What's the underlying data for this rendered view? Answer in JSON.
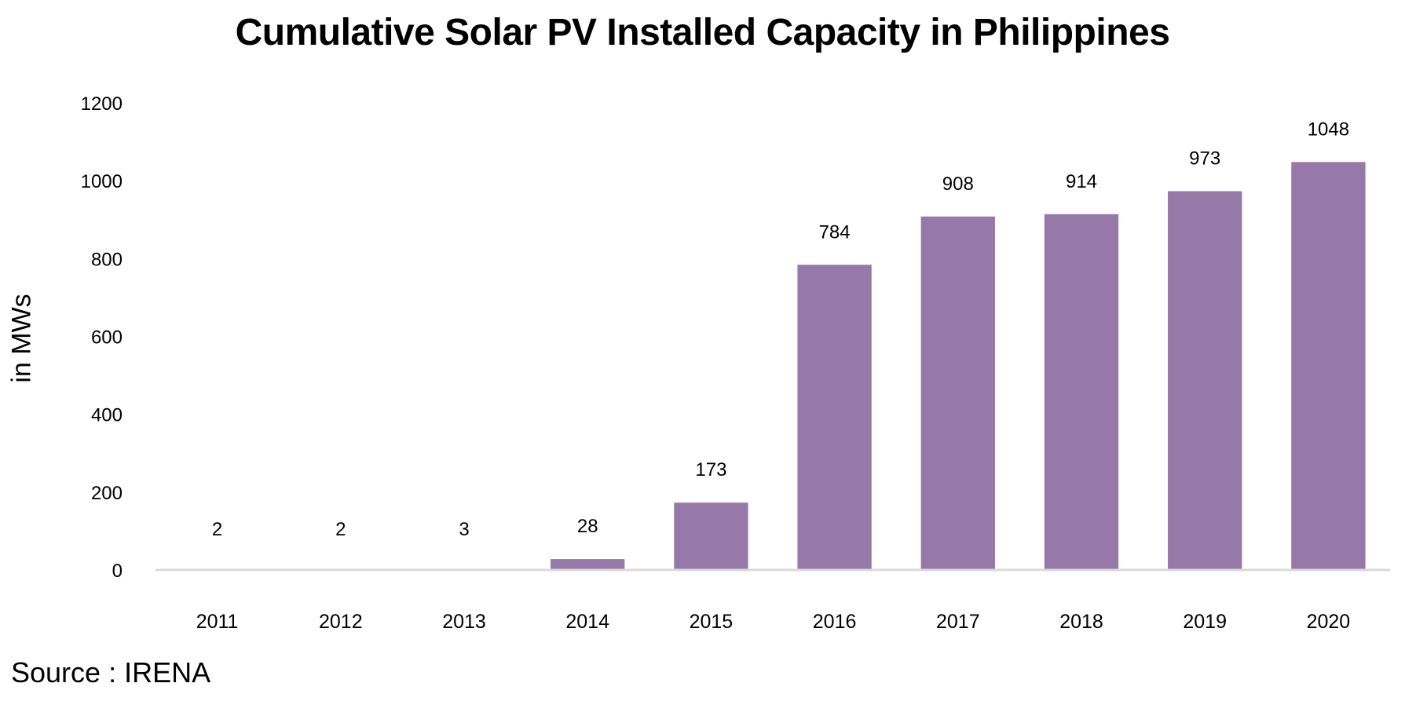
{
  "chart_data": {
    "type": "bar",
    "title": "Cumulative Solar PV Installed Capacity in Philippines",
    "xlabel": "",
    "ylabel": "in MWs",
    "categories": [
      "2011",
      "2012",
      "2013",
      "2014",
      "2015",
      "2016",
      "2017",
      "2018",
      "2019",
      "2020"
    ],
    "values": [
      2,
      2,
      3,
      28,
      173,
      784,
      908,
      914,
      973,
      1048
    ],
    "data_labels": [
      "2",
      "2",
      "3",
      "28",
      "173",
      "784",
      "908",
      "914",
      "973",
      "1048"
    ],
    "ylim": [
      0,
      1200
    ],
    "yticks": [
      0,
      200,
      400,
      600,
      800,
      1000,
      1200
    ],
    "ytick_labels": [
      "0",
      "200",
      "400",
      "600",
      "800",
      "1000",
      "1200"
    ],
    "grid": false,
    "legend": "none",
    "bar_color": "#9679A8",
    "axis_color": "#D9D9D9"
  },
  "source": "Source : IRENA"
}
